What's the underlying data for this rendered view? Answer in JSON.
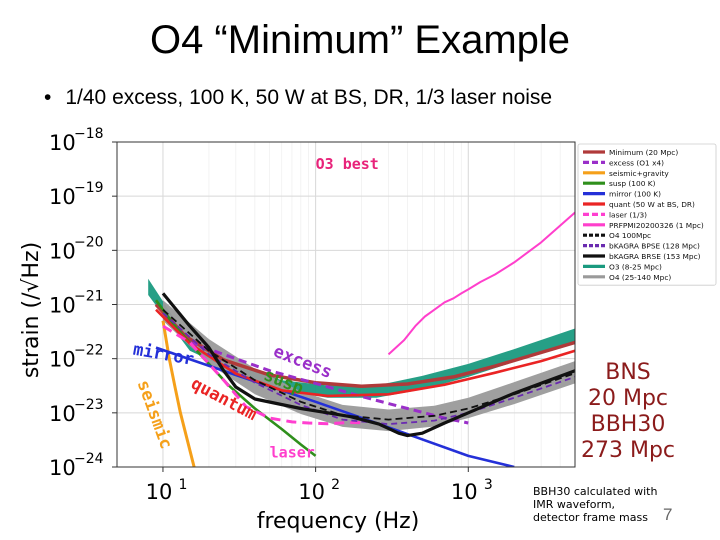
{
  "slide": {
    "title": "O4 “Minimum” Example",
    "bullet": "1/40 excess, 100 K, 50 W at BS, DR, 1/3 laser noise",
    "side_stats": [
      "BNS",
      "20 Mpc",
      "BBH30",
      "273 Mpc"
    ],
    "side_note": [
      "BBH30 calculated with",
      "IMR waveform,",
      "detector frame mass"
    ],
    "page_number": "7"
  },
  "chart_data": {
    "type": "line",
    "xscale": "log",
    "yscale": "log",
    "xlabel": "frequency (Hz)",
    "ylabel": "strain (/√Hz)",
    "xlim": [
      5,
      5000
    ],
    "ylim": [
      1e-24,
      1e-18
    ],
    "xticks": [
      {
        "value": 10,
        "label": "10",
        "exp": "1"
      },
      {
        "value": 100,
        "label": "10",
        "exp": "2"
      },
      {
        "value": 1000,
        "label": "10",
        "exp": "3"
      }
    ],
    "yticks": [
      {
        "value": 1e-18,
        "label": "10",
        "exp": "−18"
      },
      {
        "value": 1e-19,
        "label": "10",
        "exp": "−19"
      },
      {
        "value": 1e-20,
        "label": "10",
        "exp": "−20"
      },
      {
        "value": 1e-21,
        "label": "10",
        "exp": "−21"
      },
      {
        "value": 1e-22,
        "label": "10",
        "exp": "−22"
      },
      {
        "value": 1e-23,
        "label": "10",
        "exp": "−23"
      },
      {
        "value": 1e-24,
        "label": "10",
        "exp": "−24"
      }
    ],
    "grid": true,
    "legend_position": "top-right",
    "bands": [
      {
        "name": "O3 (8-25 Mpc)",
        "color": "#1a9a7f",
        "upper": [
          [
            8,
            3e-21
          ],
          [
            15,
            2e-22
          ],
          [
            30,
            8e-23
          ],
          [
            60,
            4e-23
          ],
          [
            120,
            3.2e-23
          ],
          [
            250,
            3.2e-23
          ],
          [
            500,
            4.8e-23
          ],
          [
            1000,
            8e-23
          ],
          [
            2000,
            1.5e-22
          ],
          [
            5000,
            3.6e-22
          ]
        ],
        "lower": [
          [
            8,
            1.5e-21
          ],
          [
            15,
            1.4e-22
          ],
          [
            30,
            5.6e-23
          ],
          [
            60,
            2.6e-23
          ],
          [
            120,
            1.9e-23
          ],
          [
            250,
            1.9e-23
          ],
          [
            500,
            2.7e-23
          ],
          [
            1000,
            4.6e-23
          ],
          [
            2000,
            8.7e-23
          ],
          [
            5000,
            2.1e-22
          ]
        ]
      },
      {
        "name": "O4 (25-140 Mpc)",
        "color": "#9a9a9a",
        "upper": [
          [
            10,
            1.2e-21
          ],
          [
            20,
            2.3e-22
          ],
          [
            40,
            6.5e-23
          ],
          [
            80,
            2.5e-23
          ],
          [
            150,
            1.4e-23
          ],
          [
            300,
            1.15e-23
          ],
          [
            600,
            1.35e-23
          ],
          [
            1000,
            1.9e-23
          ],
          [
            2000,
            3.7e-23
          ],
          [
            5000,
            9e-23
          ]
        ],
        "lower": [
          [
            10,
            5e-22
          ],
          [
            20,
            8e-23
          ],
          [
            40,
            2.2e-23
          ],
          [
            80,
            9.5e-24
          ],
          [
            150,
            5.5e-24
          ],
          [
            300,
            4.6e-24
          ],
          [
            600,
            5.6e-24
          ],
          [
            1000,
            8e-24
          ],
          [
            2000,
            1.45e-23
          ],
          [
            5000,
            3.5e-23
          ]
        ]
      }
    ],
    "series": [
      {
        "name": "Minimum (20 Mpc)",
        "color": "#b03a3a",
        "dash": "none",
        "width": 3.5,
        "points": [
          [
            9,
            1e-21
          ],
          [
            14,
            2.6e-22
          ],
          [
            25,
            9.5e-23
          ],
          [
            50,
            5e-23
          ],
          [
            100,
            3.6e-23
          ],
          [
            200,
            3.1e-23
          ],
          [
            400,
            3.4e-23
          ],
          [
            800,
            4.6e-23
          ],
          [
            1500,
            7.3e-23
          ],
          [
            3000,
            1.3e-22
          ],
          [
            5000,
            2e-22
          ]
        ]
      },
      {
        "name": "excess (O1 x4)",
        "color": "#9a2fc9",
        "dash": "8,5",
        "width": 3,
        "points": [
          [
            15,
            2e-22
          ],
          [
            30,
            1e-22
          ],
          [
            50,
            6e-23
          ],
          [
            100,
            3.5e-23
          ],
          [
            200,
            2e-23
          ],
          [
            400,
            1.2e-23
          ],
          [
            700,
            8e-24
          ],
          [
            1000,
            6.5e-24
          ]
        ]
      },
      {
        "name": "seismic+gravity",
        "color": "#f5a01a",
        "dash": "none",
        "width": 3,
        "points": [
          [
            10,
            5e-22
          ],
          [
            11,
            1e-22
          ],
          [
            12,
            3e-23
          ],
          [
            13,
            1e-23
          ],
          [
            14.5,
            3e-24
          ],
          [
            16,
            1e-24
          ]
        ]
      },
      {
        "name": "susp (100 K)",
        "color": "#2f8f1c",
        "dash": "none",
        "width": 2.6,
        "points": [
          [
            9,
            1.2e-21
          ],
          [
            12,
            4e-22
          ],
          [
            18,
            1.1e-22
          ],
          [
            27,
            3.2e-23
          ],
          [
            40,
            1.2e-23
          ],
          [
            60,
            5e-24
          ],
          [
            80,
            2.6e-24
          ],
          [
            100,
            1.6e-24
          ]
        ]
      },
      {
        "name": "mirror (100 K)",
        "color": "#2430d8",
        "dash": "none",
        "width": 2.6,
        "points": [
          [
            9,
            1.6e-22
          ],
          [
            30,
            5e-23
          ],
          [
            100,
            1.6e-23
          ],
          [
            300,
            5.4e-24
          ],
          [
            1000,
            1.6e-24
          ],
          [
            2000,
            1e-24
          ]
        ]
      },
      {
        "name": "quant (50 W at BS, DR)",
        "color": "#ea2424",
        "dash": "none",
        "width": 2.6,
        "points": [
          [
            9,
            8e-22
          ],
          [
            15,
            1.9e-22
          ],
          [
            30,
            5.3e-23
          ],
          [
            60,
            2.6e-23
          ],
          [
            120,
            2.05e-23
          ],
          [
            300,
            2.2e-23
          ],
          [
            700,
            3.3e-23
          ],
          [
            1500,
            5.5e-23
          ],
          [
            3000,
            9e-23
          ],
          [
            5000,
            1.4e-22
          ]
        ]
      },
      {
        "name": "laser (1/3)",
        "color": "#ff3fd0",
        "dash": "10,6",
        "width": 3,
        "points": [
          [
            10,
            4e-22
          ],
          [
            15,
            2e-22
          ],
          [
            25,
            4e-23
          ],
          [
            35,
            1.3e-23
          ],
          [
            50,
            8e-24
          ],
          [
            70,
            6.8e-24
          ],
          [
            90,
            6.5e-24
          ],
          [
            120,
            6.3e-24
          ],
          [
            160,
            6.6e-24
          ],
          [
            200,
            6.6e-24
          ]
        ]
      },
      {
        "name": "PRFPMI20200326 (1 Mpc)",
        "color": "#ff3fcc",
        "dash": "none",
        "width": 2,
        "points": [
          [
            300,
            1.2e-22
          ],
          [
            380,
            2.2e-22
          ],
          [
            450,
            4e-22
          ],
          [
            520,
            6e-22
          ],
          [
            600,
            8e-22
          ],
          [
            700,
            1.1e-21
          ],
          [
            800,
            1.3e-21
          ],
          [
            900,
            1.6e-21
          ],
          [
            1000,
            1.9e-21
          ],
          [
            1200,
            2.6e-21
          ],
          [
            1500,
            3.6e-21
          ],
          [
            2000,
            6e-21
          ],
          [
            3000,
            1.4e-20
          ],
          [
            5000,
            5e-20
          ]
        ]
      },
      {
        "name": "O4 100Mpc",
        "color": "#111111",
        "dash": "7,4",
        "width": 1.8,
        "points": [
          [
            10,
            8e-22
          ],
          [
            20,
            1.4e-22
          ],
          [
            40,
            4e-23
          ],
          [
            80,
            1.6e-23
          ],
          [
            150,
            9e-24
          ],
          [
            300,
            7.5e-24
          ],
          [
            600,
            8.8e-24
          ],
          [
            1000,
            1.2e-23
          ],
          [
            2000,
            2.2e-23
          ],
          [
            5000,
            5.4e-23
          ]
        ]
      },
      {
        "name": "bKAGRA BPSE (128 Mpc)",
        "color": "#6a2bb0",
        "dash": "6,4",
        "width": 1.8,
        "points": [
          [
            10,
            7e-22
          ],
          [
            20,
            1.2e-22
          ],
          [
            40,
            3.6e-23
          ],
          [
            80,
            1.4e-23
          ],
          [
            150,
            7.5e-24
          ],
          [
            300,
            6.2e-24
          ],
          [
            600,
            7.2e-24
          ],
          [
            1000,
            1e-23
          ],
          [
            2000,
            1.9e-23
          ],
          [
            5000,
            4.6e-23
          ]
        ]
      },
      {
        "name": "bKAGRA BRSE (153 Mpc)",
        "color": "#111111",
        "dash": "none",
        "width": 3.2,
        "points": [
          [
            10,
            1.6e-21
          ],
          [
            15,
            4e-22
          ],
          [
            20,
            1.6e-22
          ],
          [
            25,
            6e-23
          ],
          [
            30,
            3e-23
          ],
          [
            40,
            1.8e-23
          ],
          [
            80,
            1.2e-23
          ],
          [
            120,
            1e-23
          ],
          [
            170,
            8.5e-24
          ],
          [
            260,
            6.2e-24
          ],
          [
            350,
            4.2e-24
          ],
          [
            400,
            3.8e-24
          ],
          [
            500,
            4.2e-24
          ],
          [
            700,
            6.5e-24
          ],
          [
            1000,
            1e-23
          ],
          [
            2000,
            2.3e-23
          ],
          [
            5000,
            6e-23
          ]
        ]
      }
    ],
    "legend": [
      {
        "label": "Minimum (20 Mpc)",
        "color": "#b03a3a",
        "dash": "none"
      },
      {
        "label": "excess (O1 x4)",
        "color": "#9a2fc9",
        "dash": "6,3"
      },
      {
        "label": "seismic+gravity",
        "color": "#f5a01a",
        "dash": "none"
      },
      {
        "label": "susp (100 K)",
        "color": "#2f8f1c",
        "dash": "none"
      },
      {
        "label": "mirror (100 K)",
        "color": "#2430d8",
        "dash": "none"
      },
      {
        "label": "quant (50 W at BS, DR)",
        "color": "#ea2424",
        "dash": "none"
      },
      {
        "label": "laser (1/3)",
        "color": "#ff3fd0",
        "dash": "6,3"
      },
      {
        "label": "PRFPMI20200326 (1 Mpc)",
        "color": "#ff3fcc",
        "dash": "none"
      },
      {
        "label": "O4 100Mpc",
        "color": "#111111",
        "dash": "4,2"
      },
      {
        "label": "bKAGRA BPSE (128 Mpc)",
        "color": "#6a2bb0",
        "dash": "4,2"
      },
      {
        "label": "bKAGRA BRSE (153 Mpc)",
        "color": "#111111",
        "dash": "none"
      },
      {
        "label": "O3 (8-25 Mpc)",
        "color": "#1a9a7f",
        "dash": "none"
      },
      {
        "label": "O4 (25-140 Mpc)",
        "color": "#9a9a9a",
        "dash": "none"
      }
    ],
    "annotations": [
      {
        "text": "O3 best",
        "color": "#e8237a",
        "x": 100,
        "y": 3.2e-19,
        "rotate": 0,
        "size": 15
      },
      {
        "text": "excess",
        "color": "#9a2fc9",
        "x": 52,
        "y": 1.15e-22,
        "rotate": 22,
        "size": 17
      },
      {
        "text": "mirror",
        "color": "#2430d8",
        "x": 6.3,
        "y": 1.2e-22,
        "rotate": 10,
        "size": 17
      },
      {
        "text": "susp",
        "color": "#2f8f1c",
        "x": 45,
        "y": 4.2e-23,
        "rotate": 22,
        "size": 17
      },
      {
        "text": "quantum",
        "color": "#ea2424",
        "x": 15,
        "y": 3e-23,
        "rotate": 28,
        "size": 17
      },
      {
        "text": "seismic",
        "color": "#f5a01a",
        "x": 6.8,
        "y": 3.6e-23,
        "rotate": 70,
        "size": 17
      },
      {
        "text": "laser",
        "color": "#ff3fcc",
        "x": 50,
        "y": 1.5e-24,
        "rotate": 0,
        "size": 15
      }
    ]
  }
}
